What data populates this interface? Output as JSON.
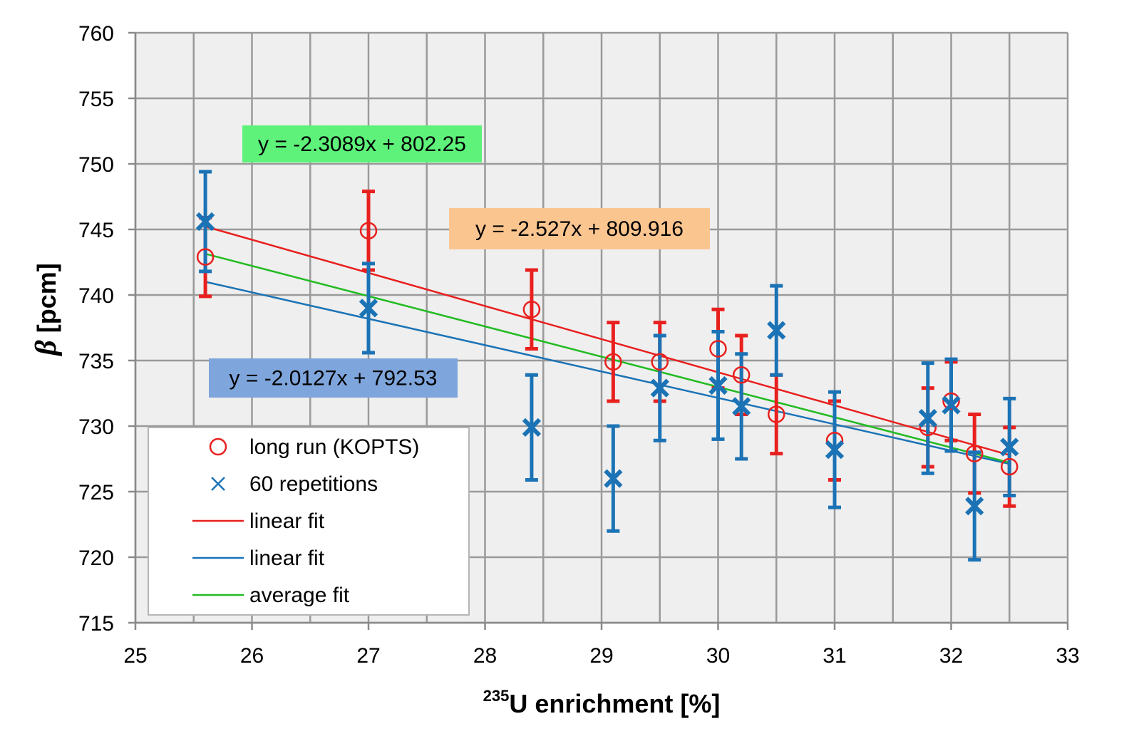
{
  "chart_data": {
    "type": "scatter",
    "title": "",
    "xlabel_sup": "235",
    "xlabel": "U enrichment [%]",
    "ylabel_symbol": "β",
    "ylabel": " [pcm]",
    "xlim": [
      25,
      33
    ],
    "ylim": [
      715,
      760
    ],
    "x_ticks": [
      25,
      26,
      27,
      28,
      29,
      30,
      31,
      32,
      33
    ],
    "y_ticks": [
      715,
      720,
      725,
      730,
      735,
      740,
      745,
      750,
      755,
      760
    ],
    "x_minor_step": 0.5,
    "grid": true,
    "series": [
      {
        "name": "long run (KOPTS)",
        "marker": "circle",
        "color": "#e8201e",
        "x": [
          25.6,
          27.0,
          28.4,
          29.1,
          29.5,
          30.0,
          30.2,
          30.5,
          31.0,
          31.8,
          32.0,
          32.2,
          32.5
        ],
        "y": [
          742.9,
          744.9,
          738.9,
          734.9,
          734.9,
          735.9,
          733.9,
          730.9,
          728.9,
          729.9,
          731.9,
          727.9,
          726.9
        ],
        "err": [
          3.0,
          3.0,
          3.0,
          3.0,
          3.0,
          3.0,
          3.0,
          3.0,
          3.0,
          3.0,
          3.0,
          3.0,
          3.0
        ]
      },
      {
        "name": "60 repetitions",
        "marker": "x",
        "color": "#1b73b6",
        "x": [
          25.6,
          27.0,
          28.4,
          29.1,
          29.5,
          30.0,
          30.2,
          30.5,
          31.0,
          31.8,
          32.0,
          32.2,
          32.5
        ],
        "y": [
          745.6,
          739.0,
          729.9,
          726.0,
          732.9,
          733.1,
          731.5,
          737.3,
          728.2,
          730.6,
          731.6,
          723.9,
          728.4
        ],
        "err": [
          3.8,
          3.4,
          4.0,
          4.0,
          4.0,
          4.1,
          4.0,
          3.4,
          4.4,
          4.2,
          3.5,
          4.1,
          3.7
        ]
      }
    ],
    "fits": [
      {
        "name": "linear fit",
        "color": "#e8201e",
        "slope": -2.527,
        "intercept": 809.916,
        "x_range": [
          25.6,
          32.5
        ]
      },
      {
        "name": "linear fit",
        "color": "#1b73b6",
        "slope": -2.0127,
        "intercept": 792.53,
        "x_range": [
          25.6,
          32.5
        ]
      },
      {
        "name": "average fit",
        "color": "#22bb22",
        "slope": -2.3089,
        "intercept": 802.25,
        "x_range": [
          25.6,
          32.5
        ]
      }
    ],
    "equations": [
      {
        "text": "y = -2.3089x + 802.25",
        "bg": "#5ef27a",
        "for": "average fit"
      },
      {
        "text": "y = -2.527x + 809.916",
        "bg": "#fbc590",
        "for": "red linear fit"
      },
      {
        "text": "y = -2.0127x + 792.53",
        "bg": "#7fa6dc",
        "for": "blue linear fit"
      }
    ],
    "legend": {
      "placement": "bottom-left",
      "entries": [
        {
          "label": "long run (KOPTS)",
          "symbol": "circle",
          "color": "#e8201e"
        },
        {
          "label": "60 repetitions",
          "symbol": "x",
          "color": "#1b73b6"
        },
        {
          "label": "linear fit",
          "symbol": "line",
          "color": "#e8201e"
        },
        {
          "label": "linear fit",
          "symbol": "line",
          "color": "#1b73b6"
        },
        {
          "label": "average fit",
          "symbol": "line",
          "color": "#22bb22"
        }
      ]
    }
  }
}
